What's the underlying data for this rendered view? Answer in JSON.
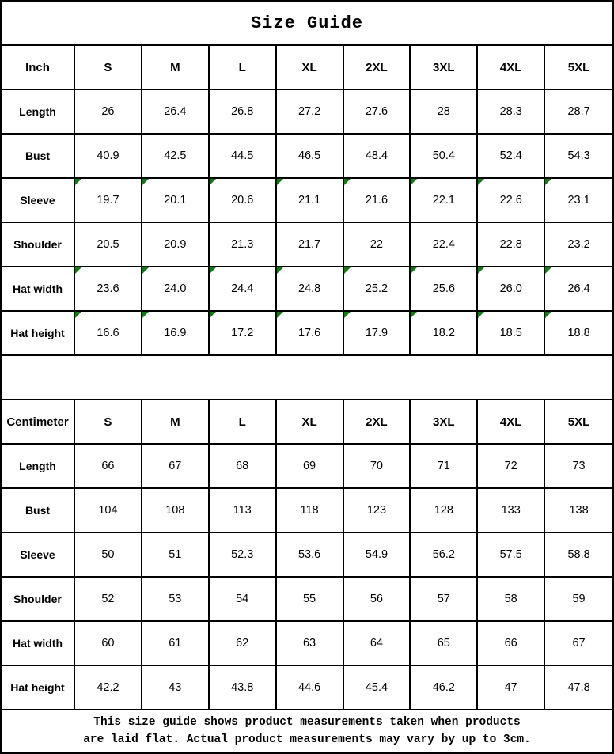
{
  "title": "Size Guide",
  "sizes": [
    "S",
    "M",
    "L",
    "XL",
    "2XL",
    "3XL",
    "4XL",
    "5XL"
  ],
  "colors": {
    "border": "#000000",
    "background": "#ffffff",
    "text": "#000000",
    "comment_flag_green": "#0e7d0e"
  },
  "inch_table": {
    "unit_label": "Inch",
    "rows": [
      {
        "label": "Length",
        "flagged": false,
        "values": [
          "26",
          "26.4",
          "26.8",
          "27.2",
          "27.6",
          "28",
          "28.3",
          "28.7"
        ]
      },
      {
        "label": "Bust",
        "flagged": false,
        "values": [
          "40.9",
          "42.5",
          "44.5",
          "46.5",
          "48.4",
          "50.4",
          "52.4",
          "54.3"
        ]
      },
      {
        "label": "Sleeve",
        "flagged": true,
        "values": [
          "19.7",
          "20.1",
          "20.6",
          "21.1",
          "21.6",
          "22.1",
          "22.6",
          "23.1"
        ]
      },
      {
        "label": "Shoulder",
        "flagged": false,
        "values": [
          "20.5",
          "20.9",
          "21.3",
          "21.7",
          "22",
          "22.4",
          "22.8",
          "23.2"
        ]
      },
      {
        "label": "Hat width",
        "flagged": true,
        "values": [
          "23.6",
          "24.0",
          "24.4",
          "24.8",
          "25.2",
          "25.6",
          "26.0",
          "26.4"
        ]
      },
      {
        "label": "Hat height",
        "flagged": true,
        "values": [
          "16.6",
          "16.9",
          "17.2",
          "17.6",
          "17.9",
          "18.2",
          "18.5",
          "18.8"
        ]
      }
    ]
  },
  "cm_table": {
    "unit_label": "Centimeter",
    "rows": [
      {
        "label": "Length",
        "flagged": false,
        "values": [
          "66",
          "67",
          "68",
          "69",
          "70",
          "71",
          "72",
          "73"
        ]
      },
      {
        "label": "Bust",
        "flagged": false,
        "values": [
          "104",
          "108",
          "113",
          "118",
          "123",
          "128",
          "133",
          "138"
        ]
      },
      {
        "label": "Sleeve",
        "flagged": false,
        "values": [
          "50",
          "51",
          "52.3",
          "53.6",
          "54.9",
          "56.2",
          "57.5",
          "58.8"
        ]
      },
      {
        "label": "Shoulder",
        "flagged": false,
        "values": [
          "52",
          "53",
          "54",
          "55",
          "56",
          "57",
          "58",
          "59"
        ]
      },
      {
        "label": "Hat width",
        "flagged": false,
        "values": [
          "60",
          "61",
          "62",
          "63",
          "64",
          "65",
          "66",
          "67"
        ]
      },
      {
        "label": "Hat height",
        "flagged": false,
        "values": [
          "42.2",
          "43",
          "43.8",
          "44.6",
          "45.4",
          "46.2",
          "47",
          "47.8"
        ]
      }
    ]
  },
  "footer": {
    "line1": "This size guide shows product measurements taken when products",
    "line2": "are laid flat. Actual product measurements may vary by up to 3cm."
  }
}
